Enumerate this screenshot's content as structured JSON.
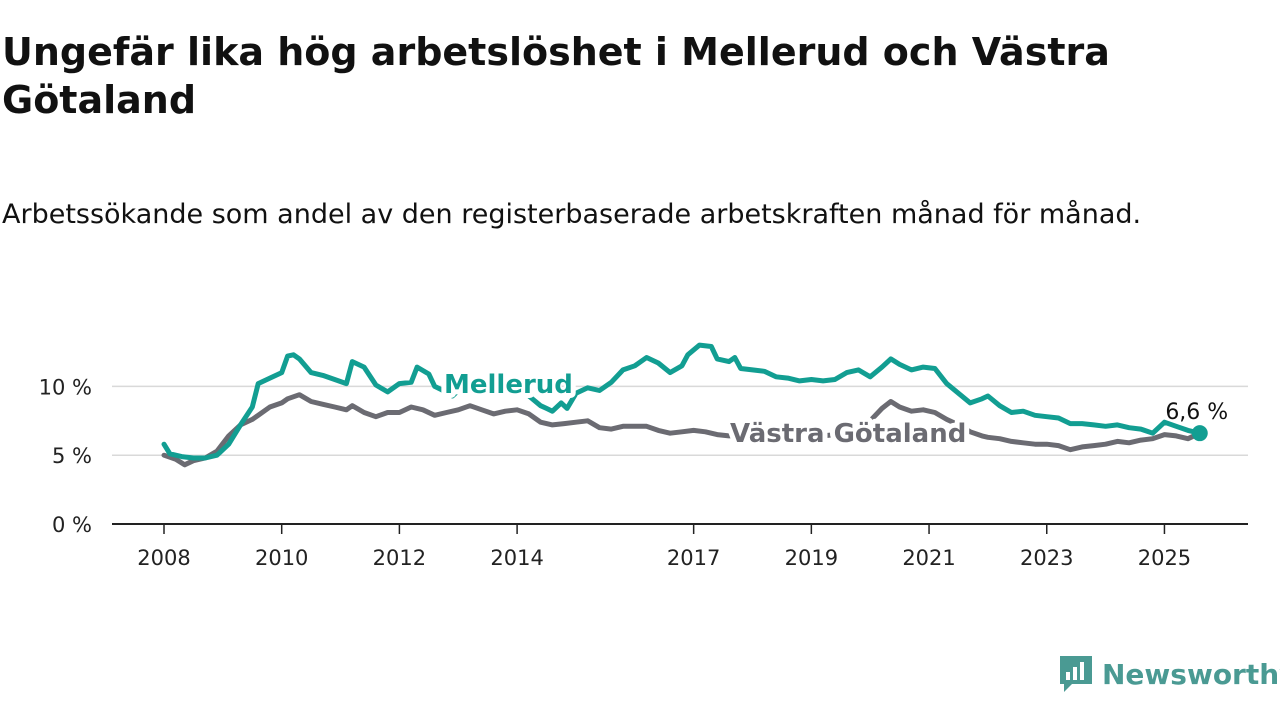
{
  "header": {
    "title": "Ungefär lika hög arbetslöshet i Mellerud och Västra Götaland",
    "subtitle": "Arbetssökande som andel av den registerbaserade arbetskraften månad för månad."
  },
  "brand": {
    "name": "Newsworthy",
    "icon": "newsworthy-logo-icon",
    "color": "#4a9a93"
  },
  "chart_data": {
    "type": "line",
    "x_unit": "year",
    "xlim": [
      2007.9,
      2025.8
    ],
    "ylim": [
      0,
      13.5
    ],
    "yticks": [
      0,
      5,
      10
    ],
    "ytick_labels": [
      "0 %",
      "5 %",
      "10 %"
    ],
    "xticks": [
      2008,
      2010,
      2012,
      2014,
      2017,
      2019,
      2021,
      2023,
      2025
    ],
    "xtick_labels": [
      "2008",
      "2010",
      "2012",
      "2014",
      "2017",
      "2019",
      "2021",
      "2023",
      "2025"
    ],
    "grid": true,
    "end_label": "6,6 %",
    "series": [
      {
        "name": "Mellerud",
        "color": "#129e92",
        "points": [
          [
            2008.0,
            5.8
          ],
          [
            2008.1,
            5.1
          ],
          [
            2008.3,
            4.9
          ],
          [
            2008.5,
            4.8
          ],
          [
            2008.7,
            4.8
          ],
          [
            2008.9,
            5.0
          ],
          [
            2009.1,
            5.8
          ],
          [
            2009.3,
            7.2
          ],
          [
            2009.5,
            8.5
          ],
          [
            2009.6,
            10.2
          ],
          [
            2009.8,
            10.6
          ],
          [
            2010.0,
            11.0
          ],
          [
            2010.1,
            12.2
          ],
          [
            2010.2,
            12.3
          ],
          [
            2010.3,
            12.0
          ],
          [
            2010.5,
            11.0
          ],
          [
            2010.7,
            10.8
          ],
          [
            2010.9,
            10.5
          ],
          [
            2011.1,
            10.2
          ],
          [
            2011.2,
            11.8
          ],
          [
            2011.4,
            11.4
          ],
          [
            2011.6,
            10.1
          ],
          [
            2011.8,
            9.6
          ],
          [
            2012.0,
            10.2
          ],
          [
            2012.2,
            10.3
          ],
          [
            2012.3,
            11.4
          ],
          [
            2012.5,
            10.9
          ],
          [
            2012.6,
            10.0
          ],
          [
            2012.7,
            9.8
          ],
          [
            2012.9,
            9.3
          ],
          [
            2013.05,
            9.9
          ],
          [
            2013.2,
            10.1
          ],
          [
            2013.4,
            10.0
          ],
          [
            2013.6,
            9.8
          ],
          [
            2013.8,
            9.6
          ],
          [
            2014.0,
            9.7
          ],
          [
            2014.2,
            9.3
          ],
          [
            2014.4,
            8.6
          ],
          [
            2014.5,
            8.4
          ],
          [
            2014.6,
            8.2
          ],
          [
            2014.75,
            8.8
          ],
          [
            2014.85,
            8.4
          ],
          [
            2015.0,
            9.5
          ],
          [
            2015.2,
            9.9
          ],
          [
            2015.4,
            9.7
          ],
          [
            2015.6,
            10.3
          ],
          [
            2015.8,
            11.2
          ],
          [
            2016.0,
            11.5
          ],
          [
            2016.2,
            12.1
          ],
          [
            2016.4,
            11.7
          ],
          [
            2016.6,
            11.0
          ],
          [
            2016.8,
            11.5
          ],
          [
            2016.9,
            12.3
          ],
          [
            2017.1,
            13.0
          ],
          [
            2017.3,
            12.9
          ],
          [
            2017.4,
            12.0
          ],
          [
            2017.6,
            11.8
          ],
          [
            2017.7,
            12.1
          ],
          [
            2017.8,
            11.3
          ],
          [
            2018.0,
            11.2
          ],
          [
            2018.2,
            11.1
          ],
          [
            2018.4,
            10.7
          ],
          [
            2018.6,
            10.6
          ],
          [
            2018.8,
            10.4
          ],
          [
            2019.0,
            10.5
          ],
          [
            2019.2,
            10.4
          ],
          [
            2019.4,
            10.5
          ],
          [
            2019.6,
            11.0
          ],
          [
            2019.8,
            11.2
          ],
          [
            2020.0,
            10.7
          ],
          [
            2020.2,
            11.4
          ],
          [
            2020.35,
            12.0
          ],
          [
            2020.5,
            11.6
          ],
          [
            2020.7,
            11.2
          ],
          [
            2020.9,
            11.4
          ],
          [
            2021.1,
            11.3
          ],
          [
            2021.3,
            10.2
          ],
          [
            2021.5,
            9.5
          ],
          [
            2021.7,
            8.8
          ],
          [
            2021.9,
            9.1
          ],
          [
            2022.0,
            9.3
          ],
          [
            2022.2,
            8.6
          ],
          [
            2022.4,
            8.1
          ],
          [
            2022.6,
            8.2
          ],
          [
            2022.8,
            7.9
          ],
          [
            2023.0,
            7.8
          ],
          [
            2023.2,
            7.7
          ],
          [
            2023.4,
            7.3
          ],
          [
            2023.6,
            7.3
          ],
          [
            2023.8,
            7.2
          ],
          [
            2024.0,
            7.1
          ],
          [
            2024.2,
            7.2
          ],
          [
            2024.4,
            7.0
          ],
          [
            2024.6,
            6.9
          ],
          [
            2024.8,
            6.6
          ],
          [
            2025.0,
            7.4
          ],
          [
            2025.2,
            7.1
          ],
          [
            2025.4,
            6.8
          ],
          [
            2025.6,
            6.6
          ]
        ]
      },
      {
        "name": "Västra Götaland",
        "color": "#6b6b72",
        "points": [
          [
            2008.0,
            5.0
          ],
          [
            2008.2,
            4.7
          ],
          [
            2008.35,
            4.3
          ],
          [
            2008.5,
            4.6
          ],
          [
            2008.7,
            4.8
          ],
          [
            2008.9,
            5.3
          ],
          [
            2009.1,
            6.4
          ],
          [
            2009.3,
            7.2
          ],
          [
            2009.5,
            7.6
          ],
          [
            2009.6,
            7.9
          ],
          [
            2009.8,
            8.5
          ],
          [
            2010.0,
            8.8
          ],
          [
            2010.1,
            9.1
          ],
          [
            2010.3,
            9.4
          ],
          [
            2010.5,
            8.9
          ],
          [
            2010.7,
            8.7
          ],
          [
            2010.9,
            8.5
          ],
          [
            2011.1,
            8.3
          ],
          [
            2011.2,
            8.6
          ],
          [
            2011.4,
            8.1
          ],
          [
            2011.6,
            7.8
          ],
          [
            2011.8,
            8.1
          ],
          [
            2012.0,
            8.1
          ],
          [
            2012.2,
            8.5
          ],
          [
            2012.4,
            8.3
          ],
          [
            2012.6,
            7.9
          ],
          [
            2012.8,
            8.1
          ],
          [
            2013.0,
            8.3
          ],
          [
            2013.2,
            8.6
          ],
          [
            2013.4,
            8.3
          ],
          [
            2013.6,
            8.0
          ],
          [
            2013.8,
            8.2
          ],
          [
            2014.0,
            8.3
          ],
          [
            2014.2,
            8.0
          ],
          [
            2014.4,
            7.4
          ],
          [
            2014.6,
            7.2
          ],
          [
            2014.8,
            7.3
          ],
          [
            2015.0,
            7.4
          ],
          [
            2015.2,
            7.5
          ],
          [
            2015.4,
            7.0
          ],
          [
            2015.6,
            6.9
          ],
          [
            2015.8,
            7.1
          ],
          [
            2016.0,
            7.1
          ],
          [
            2016.2,
            7.1
          ],
          [
            2016.4,
            6.8
          ],
          [
            2016.6,
            6.6
          ],
          [
            2016.8,
            6.7
          ],
          [
            2017.0,
            6.8
          ],
          [
            2017.2,
            6.7
          ],
          [
            2017.4,
            6.5
          ],
          [
            2017.6,
            6.4
          ],
          [
            2017.8,
            6.4
          ],
          [
            2018.0,
            6.4
          ],
          [
            2018.2,
            6.3
          ],
          [
            2018.4,
            6.2
          ],
          [
            2018.6,
            6.3
          ],
          [
            2018.8,
            6.2
          ],
          [
            2019.0,
            6.3
          ],
          [
            2019.2,
            6.4
          ],
          [
            2019.4,
            6.5
          ],
          [
            2019.6,
            6.7
          ],
          [
            2019.8,
            7.0
          ],
          [
            2020.0,
            7.5
          ],
          [
            2020.2,
            8.4
          ],
          [
            2020.35,
            8.9
          ],
          [
            2020.5,
            8.5
          ],
          [
            2020.7,
            8.2
          ],
          [
            2020.9,
            8.3
          ],
          [
            2021.1,
            8.1
          ],
          [
            2021.3,
            7.6
          ],
          [
            2021.5,
            7.2
          ],
          [
            2021.7,
            6.7
          ],
          [
            2021.9,
            6.4
          ],
          [
            2022.0,
            6.3
          ],
          [
            2022.2,
            6.2
          ],
          [
            2022.4,
            6.0
          ],
          [
            2022.6,
            5.9
          ],
          [
            2022.8,
            5.8
          ],
          [
            2023.0,
            5.8
          ],
          [
            2023.2,
            5.7
          ],
          [
            2023.4,
            5.4
          ],
          [
            2023.6,
            5.6
          ],
          [
            2023.8,
            5.7
          ],
          [
            2024.0,
            5.8
          ],
          [
            2024.2,
            6.0
          ],
          [
            2024.4,
            5.9
          ],
          [
            2024.6,
            6.1
          ],
          [
            2024.8,
            6.2
          ],
          [
            2025.0,
            6.5
          ],
          [
            2025.2,
            6.4
          ],
          [
            2025.4,
            6.2
          ],
          [
            2025.6,
            6.6
          ]
        ]
      }
    ]
  }
}
